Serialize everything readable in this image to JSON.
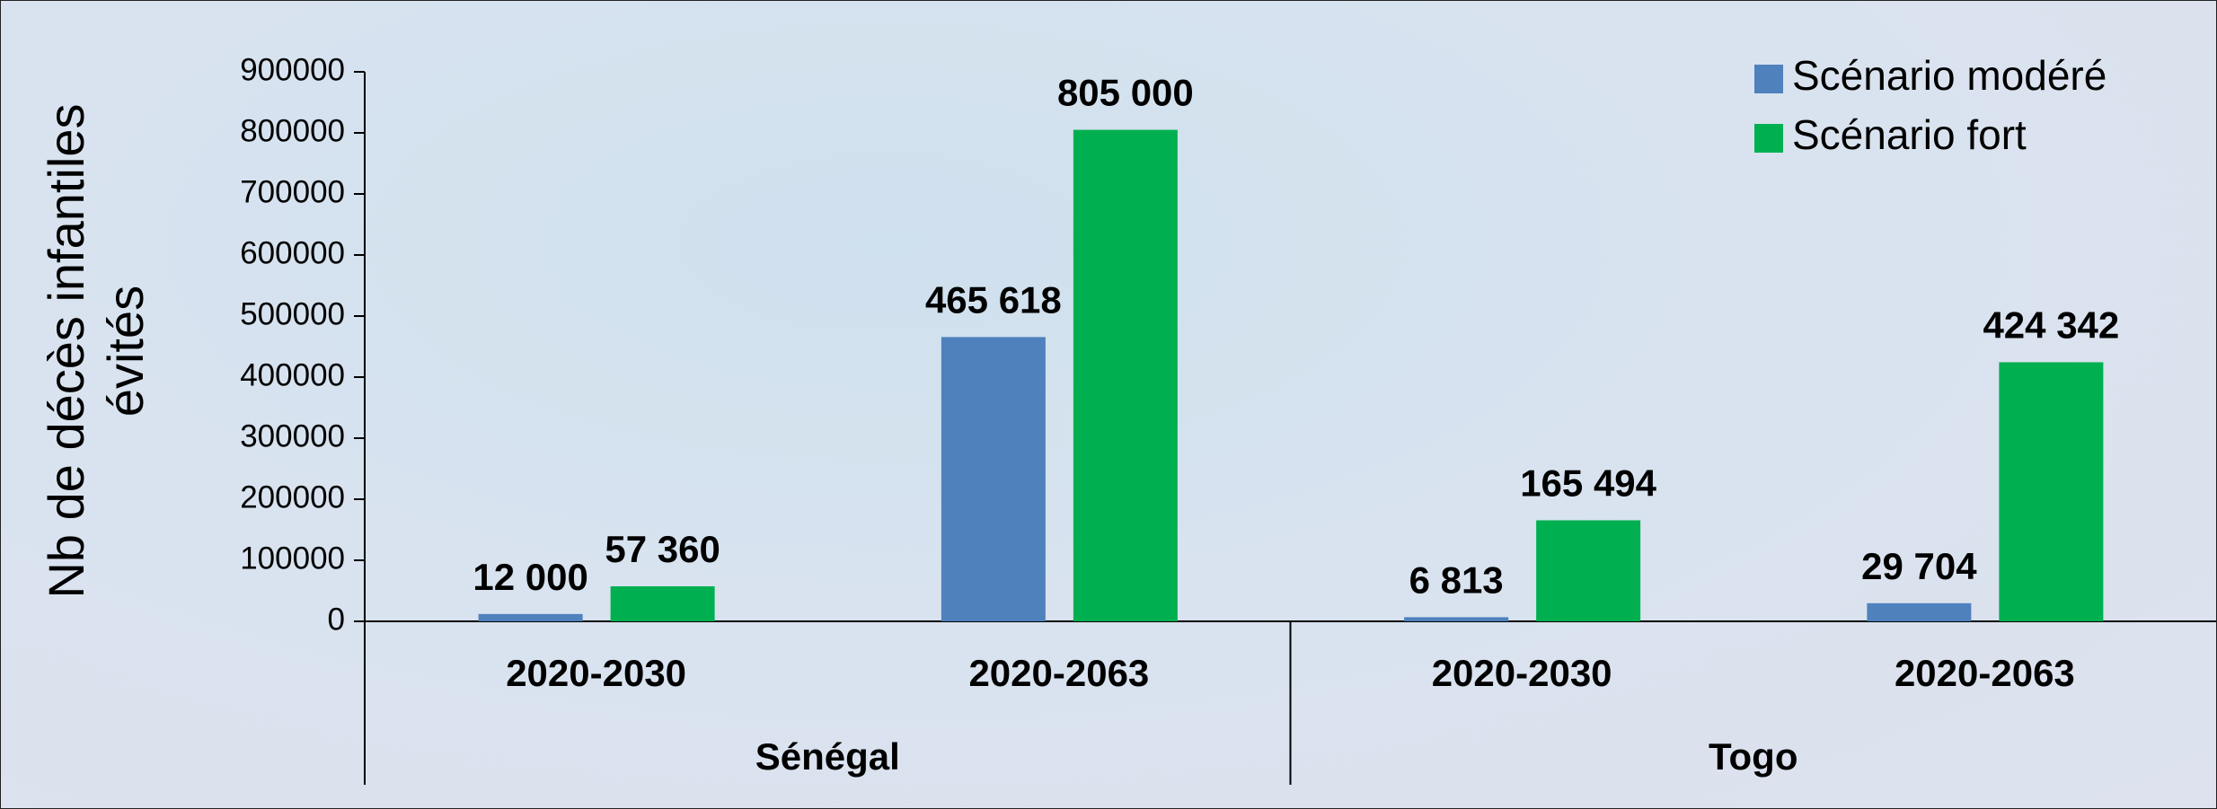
{
  "chart_data": {
    "type": "bar",
    "y_label": "Nb de décès infantiles évités",
    "categories": [
      "2020-2030",
      "2020-2063",
      "2020-2030",
      "2020-2063"
    ],
    "groups": [
      {
        "name": "Sénégal",
        "size": 2
      },
      {
        "name": "Togo",
        "size": 2
      }
    ],
    "series": [
      {
        "name": "Scénario modéré",
        "color": "#4f81bd",
        "values": [
          12000,
          465618,
          6813,
          29704
        ],
        "value_labels": [
          "12 000",
          "465 618",
          "6 813",
          "29 704"
        ]
      },
      {
        "name": "Scénario fort",
        "color": "#00b050",
        "values": [
          57360,
          805000,
          165494,
          424342
        ],
        "value_labels": [
          "57 360",
          "805 000",
          "165 494",
          "424 342"
        ]
      }
    ],
    "ylim": [
      0,
      900000
    ],
    "yticks": [
      0,
      100000,
      200000,
      300000,
      400000,
      500000,
      600000,
      700000,
      800000,
      900000
    ],
    "legend": "upper right"
  }
}
